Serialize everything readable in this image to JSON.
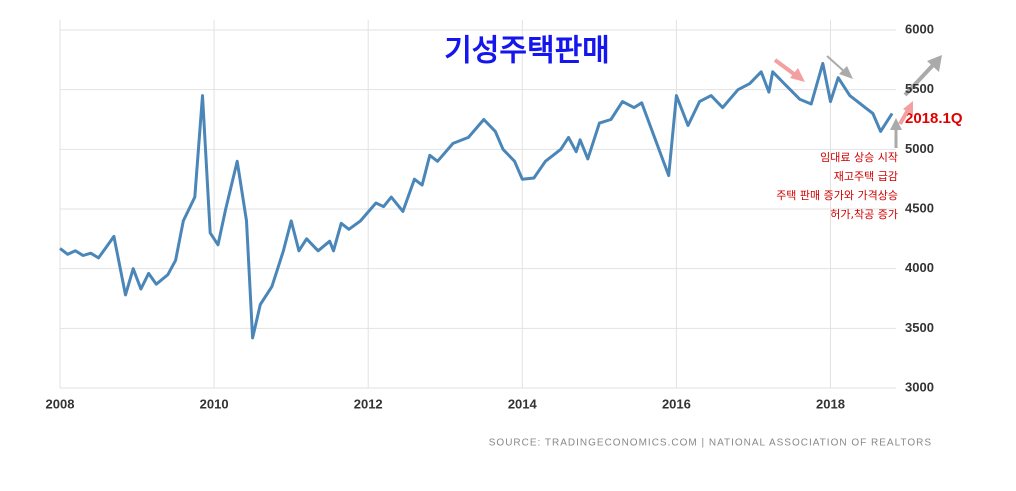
{
  "chart_data": {
    "type": "line",
    "title": "기성주택판매",
    "x": [
      2008.0,
      2008.1,
      2008.2,
      2008.3,
      2008.4,
      2008.5,
      2008.6,
      2008.7,
      2008.85,
      2008.95,
      2009.05,
      2009.15,
      2009.25,
      2009.4,
      2009.5,
      2009.6,
      2009.75,
      2009.85,
      2009.95,
      2010.05,
      2010.15,
      2010.3,
      2010.42,
      2010.5,
      2010.6,
      2010.75,
      2010.9,
      2011.0,
      2011.1,
      2011.2,
      2011.35,
      2011.5,
      2011.55,
      2011.65,
      2011.75,
      2011.9,
      2012.1,
      2012.2,
      2012.3,
      2012.45,
      2012.6,
      2012.7,
      2012.8,
      2012.9,
      2013.1,
      2013.3,
      2013.5,
      2013.65,
      2013.75,
      2013.9,
      2014.0,
      2014.15,
      2014.3,
      2014.5,
      2014.6,
      2014.7,
      2014.75,
      2014.85,
      2015.0,
      2015.15,
      2015.3,
      2015.45,
      2015.55,
      2015.9,
      2016.0,
      2016.15,
      2016.3,
      2016.45,
      2016.6,
      2016.8,
      2016.95,
      2017.1,
      2017.2,
      2017.25,
      2017.4,
      2017.6,
      2017.75,
      2017.9,
      2018.0,
      2018.1,
      2018.25,
      2018.45,
      2018.55,
      2018.65,
      2018.8
    ],
    "series": [
      {
        "name": "기성주택판매",
        "color": "#4a86b8",
        "values": [
          4170,
          4120,
          4150,
          4110,
          4130,
          4090,
          4180,
          4270,
          3780,
          4000,
          3830,
          3960,
          3870,
          3950,
          4070,
          4400,
          4600,
          5450,
          4300,
          4200,
          4500,
          4900,
          4400,
          3420,
          3700,
          3850,
          4150,
          4400,
          4150,
          4250,
          4150,
          4230,
          4150,
          4380,
          4330,
          4400,
          4550,
          4520,
          4600,
          4480,
          4750,
          4700,
          4950,
          4900,
          5050,
          5100,
          5250,
          5150,
          5000,
          4900,
          4750,
          4760,
          4900,
          5000,
          5100,
          4980,
          5080,
          4920,
          5220,
          5250,
          5400,
          5350,
          5390,
          4780,
          5450,
          5200,
          5400,
          5450,
          5350,
          5500,
          5550,
          5650,
          5480,
          5650,
          5550,
          5420,
          5380,
          5720,
          5400,
          5600,
          5450,
          5350,
          5300,
          5150,
          5300
        ]
      }
    ],
    "xlim": [
      2008,
      2018.85
    ],
    "xticks": [
      2008,
      2010,
      2012,
      2014,
      2016,
      2018
    ],
    "ylim": [
      3000,
      6000
    ],
    "yticks": [
      3000,
      3500,
      4000,
      4500,
      5000,
      5500,
      6000
    ],
    "grid": true,
    "annotations": [
      "2018.1Q",
      "임대료 상승 시작",
      "재고주택 급감",
      "주택 판매 증가와 가격상승",
      "허가,착공 증가"
    ],
    "source": "SOURCE: TRADINGECONOMICS.COM | NATIONAL ASSOCIATION OF REALTORS"
  }
}
